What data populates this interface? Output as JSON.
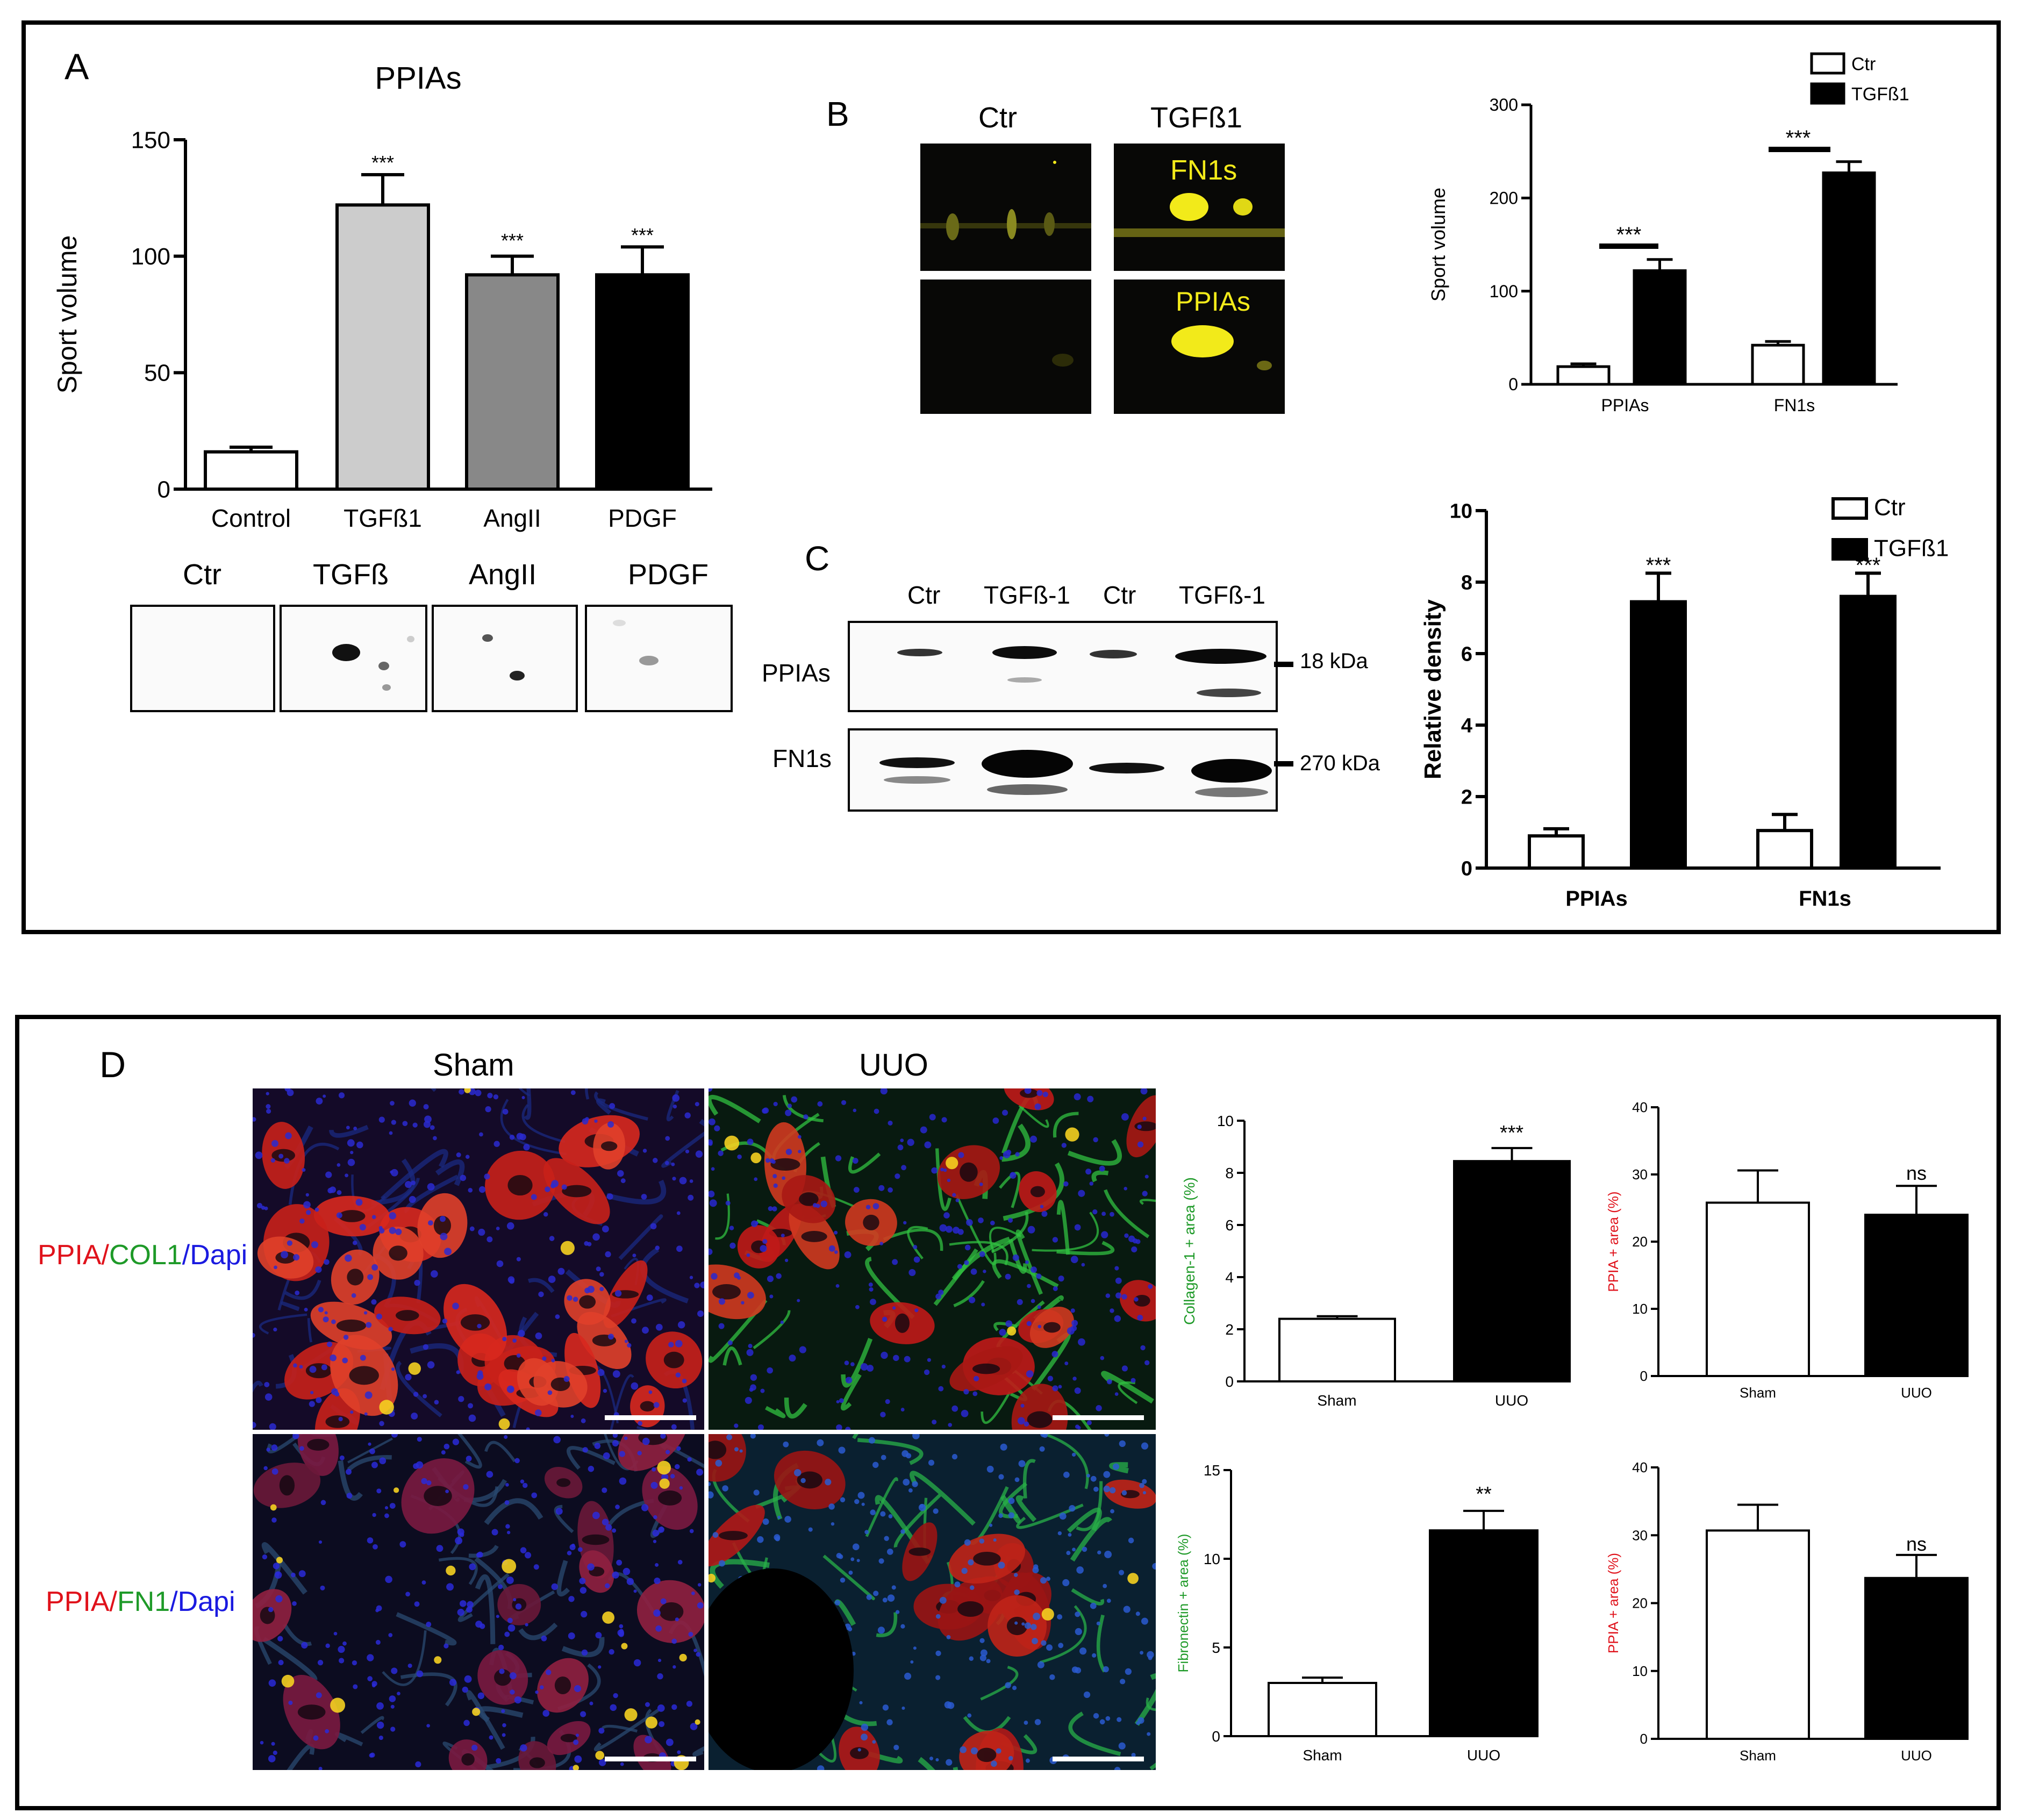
{
  "panels": {
    "A": {
      "letter": "A",
      "chart_title": "PPIAs",
      "blot_labels": [
        "Ctr",
        "TGFß",
        "AngII",
        "PDGF"
      ]
    },
    "B": {
      "letter": "B",
      "gel_labels": [
        "Ctr",
        "TGFß1"
      ],
      "spot_labels": [
        "FN1s",
        "PPIAs"
      ]
    },
    "C": {
      "letter": "C",
      "lane_labels": [
        "Ctr",
        "TGFß-1",
        "Ctr",
        "TGFß-1"
      ],
      "row_labels": [
        "PPIAs",
        "FN1s"
      ],
      "markers": [
        "18 kDa",
        "270 kDa"
      ]
    },
    "D": {
      "letter": "D",
      "col_labels": [
        "Sham",
        "UUO"
      ],
      "row1_label": {
        "a": "PPIA",
        "s1": "/",
        "b": "COL1",
        "s2": "/",
        "c": "Dapi"
      },
      "row2_label": {
        "a": "PPIA",
        "s1": "/",
        "b": "FN1",
        "s2": "/",
        "c": "Dapi"
      }
    }
  },
  "colors": {
    "red": "#e0121b",
    "green": "#1e9a28",
    "blue": "#1a1ae0",
    "yellow": "#f2ea1a"
  },
  "chart_data": [
    {
      "id": "A",
      "type": "bar",
      "title": "PPIAs",
      "ylabel": "Sport volume",
      "categories": [
        "Control",
        "TGFß1",
        "AngII",
        "PDGF"
      ],
      "values": [
        16,
        122,
        92,
        92
      ],
      "errors": [
        2,
        13,
        8,
        12
      ],
      "significance": [
        "",
        "***",
        "***",
        "***"
      ],
      "fills": [
        "#ffffff",
        "#cccccc",
        "#888888",
        "#000000"
      ],
      "ylim": [
        0,
        150
      ],
      "yticks": [
        0,
        50,
        100,
        150
      ]
    },
    {
      "id": "B",
      "type": "bar",
      "ylabel": "Sport volume",
      "categories": [
        "PPIAs",
        "FN1s"
      ],
      "series": [
        {
          "name": "Ctr",
          "values": [
            19,
            42
          ],
          "errors": [
            3,
            4
          ],
          "fill": "#ffffff"
        },
        {
          "name": "TGFß1",
          "values": [
            122,
            227
          ],
          "errors": [
            12,
            12
          ],
          "fill": "#000000"
        }
      ],
      "significance": [
        "***",
        "***"
      ],
      "ylim": [
        0,
        300
      ],
      "yticks": [
        0,
        100,
        200,
        300
      ],
      "legend": "top-right"
    },
    {
      "id": "C",
      "type": "bar",
      "ylabel": "Relative density",
      "categories": [
        "PPIAs",
        "FN1s"
      ],
      "series": [
        {
          "name": "Ctr",
          "values": [
            0.9,
            1.05
          ],
          "errors": [
            0.2,
            0.45
          ],
          "fill": "#ffffff"
        },
        {
          "name": "TGFß1",
          "values": [
            7.45,
            7.6
          ],
          "errors": [
            0.8,
            0.65
          ],
          "fill": "#000000"
        }
      ],
      "significance": [
        "***",
        "***"
      ],
      "ylim": [
        0,
        10
      ],
      "yticks": [
        0,
        2,
        4,
        6,
        8,
        10
      ],
      "legend": "top-right"
    },
    {
      "id": "D1",
      "type": "bar",
      "ylabel": "Collagen-1 + area (%)",
      "ylabel_color": "#1e9a28",
      "categories": [
        "Sham",
        "UUO"
      ],
      "values": [
        2.4,
        8.45
      ],
      "errors": [
        0.1,
        0.5
      ],
      "fills": [
        "#ffffff",
        "#000000"
      ],
      "significance": [
        "",
        "***"
      ],
      "ylim": [
        0,
        10
      ],
      "yticks": [
        0,
        2,
        4,
        6,
        8,
        10
      ]
    },
    {
      "id": "D2",
      "type": "bar",
      "ylabel": "PPIA + area (%)",
      "ylabel_color": "#e0121b",
      "categories": [
        "Sham",
        "UUO"
      ],
      "values": [
        25.8,
        24
      ],
      "errors": [
        4.8,
        4.3
      ],
      "fills": [
        "#ffffff",
        "#000000"
      ],
      "significance": [
        "",
        "ns"
      ],
      "ylim": [
        0,
        40
      ],
      "yticks": [
        0,
        10,
        20,
        30,
        40
      ]
    },
    {
      "id": "D3",
      "type": "bar",
      "ylabel": "Fibronectin + area (%)",
      "ylabel_color": "#1e9a28",
      "categories": [
        "Sham",
        "UUO"
      ],
      "values": [
        3,
        11.6
      ],
      "errors": [
        0.3,
        1.1
      ],
      "fills": [
        "#ffffff",
        "#000000"
      ],
      "significance": [
        "",
        "**"
      ],
      "ylim": [
        0,
        15
      ],
      "yticks": [
        0,
        5,
        10,
        15
      ]
    },
    {
      "id": "D4",
      "type": "bar",
      "ylabel": "PPIA + area (%)",
      "ylabel_color": "#e0121b",
      "categories": [
        "Sham",
        "UUO"
      ],
      "values": [
        30.7,
        23.7
      ],
      "errors": [
        3.8,
        3.4
      ],
      "fills": [
        "#ffffff",
        "#000000"
      ],
      "significance": [
        "",
        "ns"
      ],
      "ylim": [
        0,
        40
      ],
      "yticks": [
        0,
        10,
        20,
        30,
        40
      ]
    }
  ]
}
